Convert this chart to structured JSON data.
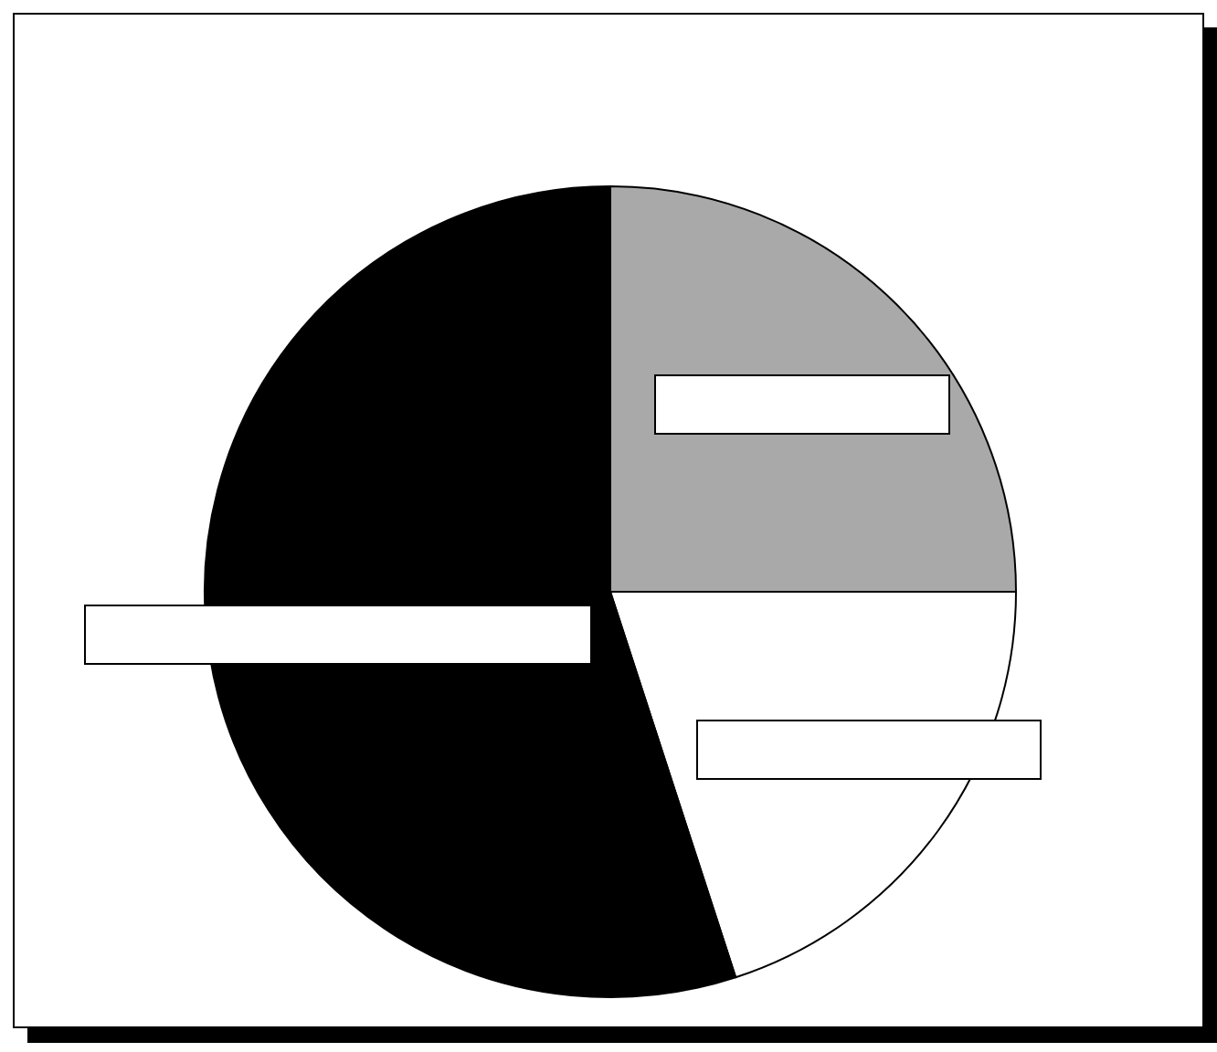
{
  "chart_data": {
    "type": "pie",
    "categories": [
      null,
      null,
      null
    ],
    "values": [
      25,
      20,
      55
    ],
    "colors": [
      "#a9a9a9",
      "#ffffff",
      "#000000"
    ]
  }
}
